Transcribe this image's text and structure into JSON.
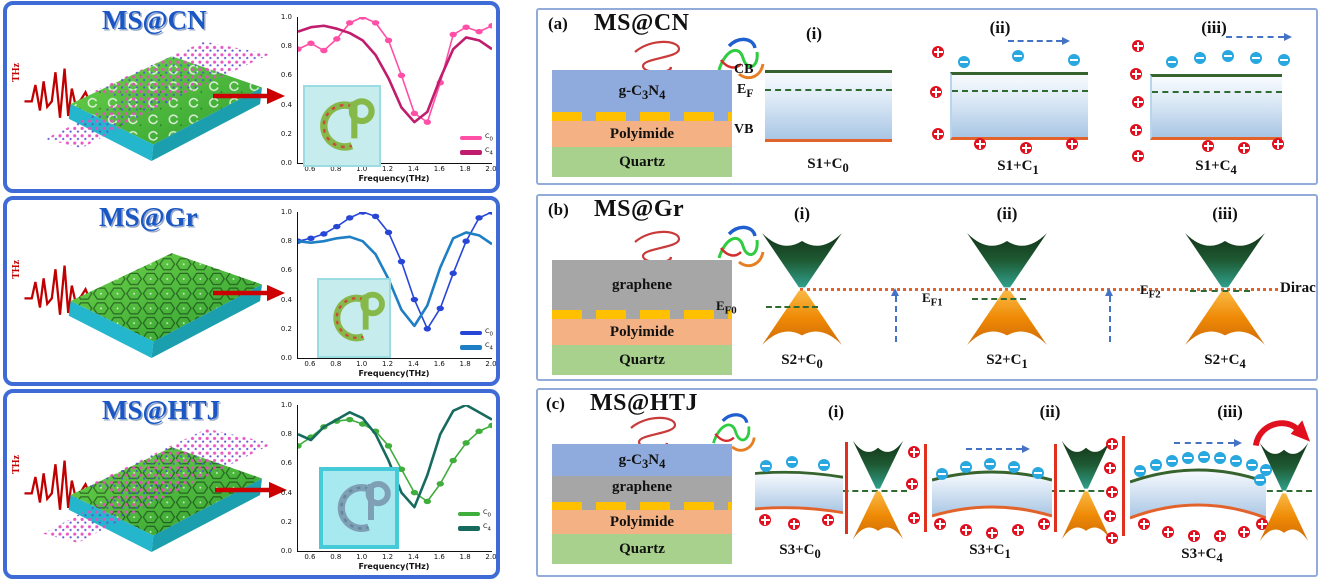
{
  "left_panels": [
    {
      "title": "MS@CN",
      "pulse_label": "THz"
    },
    {
      "title": "MS@Gr",
      "pulse_label": "THz"
    },
    {
      "title": "MS@HTJ",
      "pulse_label": "THz"
    }
  ],
  "chart_data": [
    {
      "type": "line",
      "title": "MS@CN terahertz transmission",
      "xlabel": "Frequency(THz)",
      "xlim": [
        0.5,
        2.0
      ],
      "ylim": [
        0,
        1
      ],
      "xticks": [
        "0.6",
        "0.8",
        "1.0",
        "1.2",
        "1.4",
        "1.6",
        "1.8",
        "2.0"
      ],
      "yticks": [
        "1.0",
        "0.8",
        "0.6",
        "0.4",
        "0.2",
        "0.0"
      ],
      "x": [
        0.5,
        0.6,
        0.7,
        0.8,
        0.9,
        1.0,
        1.1,
        1.2,
        1.3,
        1.4,
        1.5,
        1.6,
        1.7,
        1.8,
        1.9,
        2.0
      ],
      "series": [
        {
          "name": "C_{0}",
          "color": "#ff4fa7",
          "marker": true,
          "values": [
            0.78,
            0.82,
            0.77,
            0.85,
            0.96,
            1.0,
            0.96,
            0.84,
            0.6,
            0.34,
            0.28,
            0.55,
            0.88,
            0.93,
            0.9,
            0.94
          ]
        },
        {
          "name": "C_{4}",
          "color": "#c01d6e",
          "marker": false,
          "values": [
            0.9,
            0.93,
            0.94,
            0.92,
            0.89,
            0.84,
            0.74,
            0.58,
            0.38,
            0.28,
            0.35,
            0.58,
            0.78,
            0.86,
            0.84,
            0.78
          ]
        }
      ]
    },
    {
      "type": "line",
      "title": "MS@Gr terahertz transmission",
      "xlabel": "Frequency(THz)",
      "xlim": [
        0.5,
        2.0
      ],
      "ylim": [
        0,
        1
      ],
      "xticks": [
        "0.6",
        "0.8",
        "1.0",
        "1.2",
        "1.4",
        "1.6",
        "1.8",
        "2.0"
      ],
      "yticks": [
        "1.0",
        "0.8",
        "0.6",
        "0.4",
        "0.2",
        "0.0"
      ],
      "x": [
        0.5,
        0.6,
        0.7,
        0.8,
        0.9,
        1.0,
        1.1,
        1.2,
        1.3,
        1.4,
        1.5,
        1.6,
        1.7,
        1.8,
        1.9,
        2.0
      ],
      "series": [
        {
          "name": "C_{0}",
          "color": "#2746d8",
          "marker": true,
          "values": [
            0.8,
            0.82,
            0.85,
            0.9,
            0.96,
            1.0,
            0.97,
            0.86,
            0.66,
            0.4,
            0.2,
            0.34,
            0.58,
            0.8,
            0.96,
            1.0
          ]
        },
        {
          "name": "C_{4}",
          "color": "#1f7fc4",
          "marker": false,
          "values": [
            0.8,
            0.79,
            0.8,
            0.82,
            0.83,
            0.8,
            0.71,
            0.54,
            0.33,
            0.22,
            0.36,
            0.62,
            0.82,
            0.86,
            0.84,
            0.78
          ]
        }
      ]
    },
    {
      "type": "line",
      "title": "MS@HTJ terahertz transmission",
      "xlabel": "Frequency(THz)",
      "xlim": [
        0.5,
        2.0
      ],
      "ylim": [
        0,
        1
      ],
      "xticks": [
        "0.6",
        "0.8",
        "1.0",
        "1.2",
        "1.4",
        "1.6",
        "1.8",
        "2.0"
      ],
      "yticks": [
        "1.0",
        "0.8",
        "0.6",
        "0.4",
        "0.2",
        "0.0"
      ],
      "x": [
        0.5,
        0.6,
        0.7,
        0.8,
        0.9,
        1.0,
        1.1,
        1.2,
        1.3,
        1.4,
        1.5,
        1.6,
        1.7,
        1.8,
        1.9,
        2.0
      ],
      "series": [
        {
          "name": "C_{0}",
          "color": "#3fae3c",
          "marker": true,
          "values": [
            0.72,
            0.78,
            0.85,
            0.89,
            0.9,
            0.87,
            0.82,
            0.72,
            0.56,
            0.4,
            0.34,
            0.46,
            0.62,
            0.74,
            0.82,
            0.86
          ]
        },
        {
          "name": "C_{4}",
          "color": "#176b5e",
          "marker": false,
          "values": [
            0.8,
            0.76,
            0.85,
            0.9,
            0.95,
            0.91,
            0.8,
            0.62,
            0.4,
            0.3,
            0.52,
            0.8,
            0.96,
            1.0,
            0.95,
            0.9
          ]
        }
      ]
    }
  ],
  "right_panels": [
    {
      "label": "(a)",
      "title": "MS@CN",
      "layers": [
        "g-C_{3}N_{4}",
        "Polyimide",
        "Quartz"
      ],
      "headers": [
        "(i)",
        "(ii)",
        "(iii)"
      ],
      "captions": [
        "S1+C_{0}",
        "S1+C_{1}",
        "S1+C_{4}"
      ],
      "band_labels": {
        "cb": "CB",
        "ef": "E_{F}",
        "vb": "VB"
      }
    },
    {
      "label": "(b)",
      "title": "MS@Gr",
      "layers": [
        "graphene",
        "Polyimide",
        "Quartz"
      ],
      "headers": [
        "(i)",
        "(ii)",
        "(iii)"
      ],
      "captions": [
        "S2+C_{0}",
        "S2+C_{1}",
        "S2+C_{4}"
      ],
      "ef_labels": [
        "E_{F0}",
        "E_{F1}",
        "E_{F2}"
      ],
      "dirac_label": "Dirac"
    },
    {
      "label": "(c)",
      "title": "MS@HTJ",
      "layers": [
        "g-C_{3}N_{4}",
        "graphene",
        "Polyimide",
        "Quartz"
      ],
      "headers": [
        "(i)",
        "(ii)",
        "(iii)"
      ],
      "captions": [
        "S3+C_{0}",
        "S3+C_{1}",
        "S3+C_{4}"
      ]
    }
  ],
  "colors": {
    "electron": "#29a8e0",
    "hole": "#e0101f",
    "gold": "#ffc000",
    "g_c3n4": "#8faadc",
    "graphene": "#a6a6a6",
    "polyimide": "#f4b183",
    "quartz": "#a9d18e",
    "cb_line": "#37632e",
    "vb_line": "#e2622b",
    "left_panel_border": "#3e6bd6",
    "right_panel_border": "#93abd9"
  }
}
